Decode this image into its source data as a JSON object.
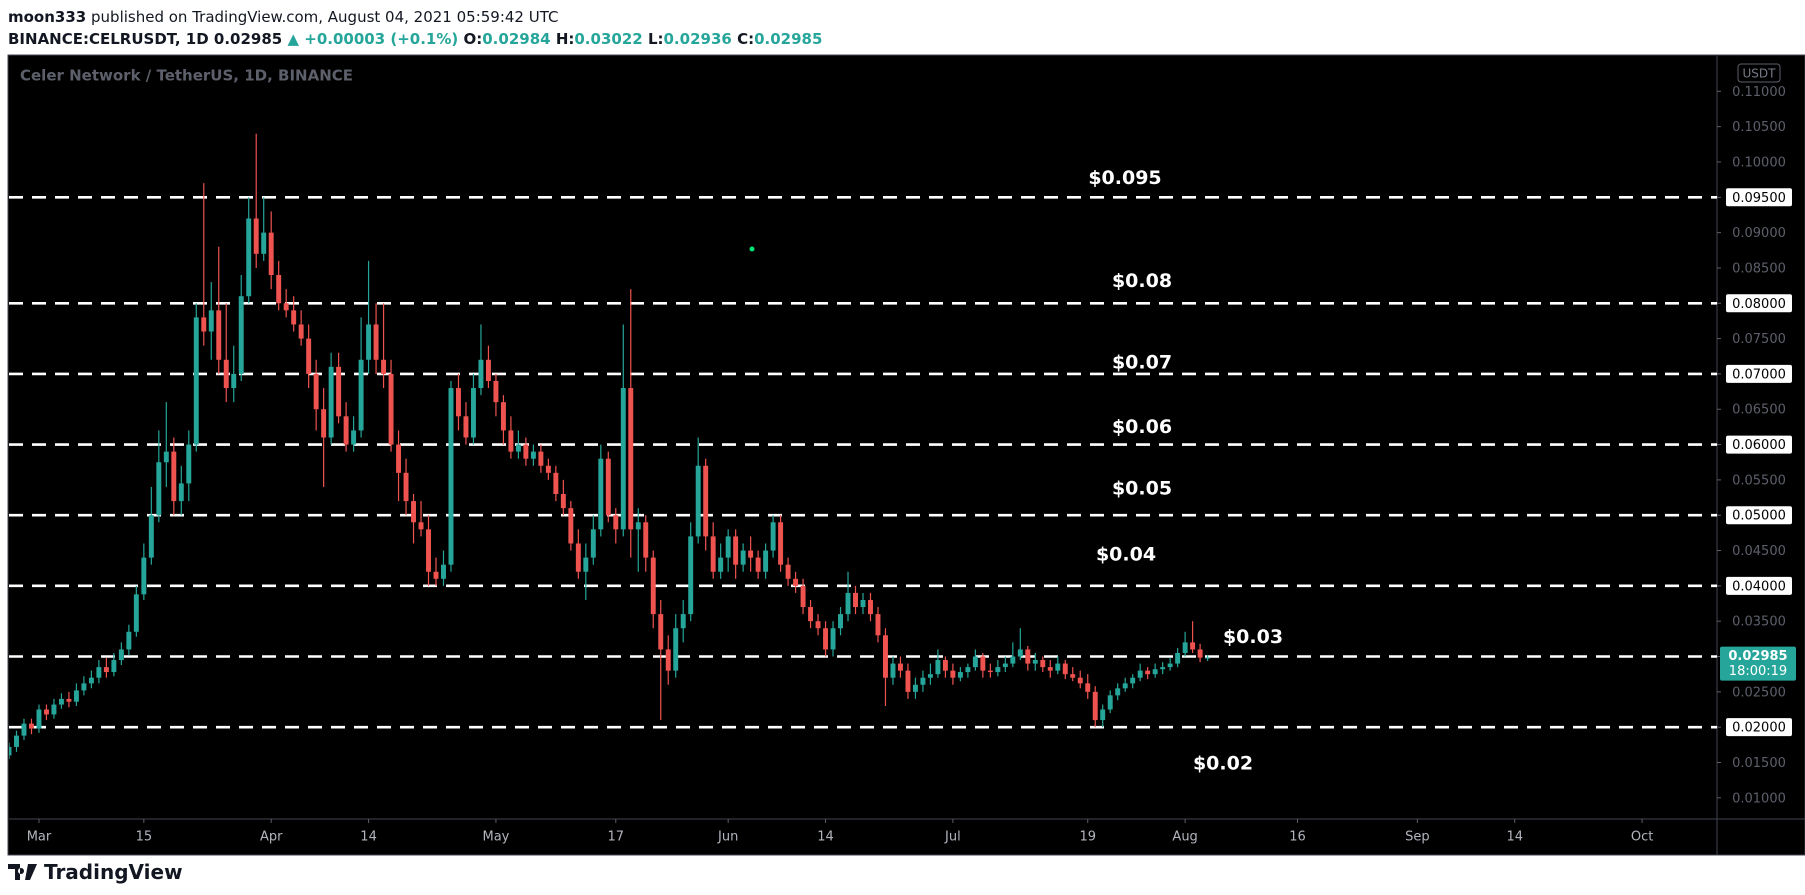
{
  "header": {
    "author": "moon333",
    "published": "published on TradingView.com, August 04, 2021 05:59:42 UTC",
    "symbol": "BINANCE:CELRUSDT, 1D",
    "change_arrow": "▲",
    "change": "+0.00003 (+0.1%)",
    "open_label": "O:",
    "high_label": "H:",
    "low_label": "L:",
    "close_label": "C:"
  },
  "footer": {
    "brand": "TradingView"
  },
  "chart_data": {
    "type": "candlestick",
    "title": "Celer Network / TetherUS, 1D, BINANCE",
    "y_unit": "USDT",
    "countdown": "18:00:19",
    "up_color": "#26a69a",
    "down_color": "#ef5350",
    "xlim": [
      "2021-02-25",
      "2021-10-11"
    ],
    "ylim": [
      0.007,
      0.115
    ],
    "xticks": [
      {
        "value": "2021-03-01",
        "label": "Mar"
      },
      {
        "value": "2021-03-15",
        "label": "15"
      },
      {
        "value": "2021-04-01",
        "label": "Apr"
      },
      {
        "value": "2021-04-14",
        "label": "14"
      },
      {
        "value": "2021-05-01",
        "label": "May"
      },
      {
        "value": "2021-05-17",
        "label": "17"
      },
      {
        "value": "2021-06-01",
        "label": "Jun"
      },
      {
        "value": "2021-06-14",
        "label": "14"
      },
      {
        "value": "2021-07-01",
        "label": "Jul"
      },
      {
        "value": "2021-07-19",
        "label": "19"
      },
      {
        "value": "2021-08-01",
        "label": "Aug"
      },
      {
        "value": "2021-08-16",
        "label": "16"
      },
      {
        "value": "2021-09-01",
        "label": "Sep"
      },
      {
        "value": "2021-09-14",
        "label": "14"
      },
      {
        "value": "2021-10-01",
        "label": "Oct"
      }
    ],
    "yticks": [
      {
        "value": 0.01,
        "label": "0.01000"
      },
      {
        "value": 0.015,
        "label": "0.01500"
      },
      {
        "value": 0.02,
        "label": "0.02000"
      },
      {
        "value": 0.025,
        "label": "0.02500"
      },
      {
        "value": 0.03,
        "label": "0.03000"
      },
      {
        "value": 0.035,
        "label": "0.03500"
      },
      {
        "value": 0.04,
        "label": "0.04000"
      },
      {
        "value": 0.045,
        "label": "0.04500"
      },
      {
        "value": 0.05,
        "label": "0.05000"
      },
      {
        "value": 0.055,
        "label": "0.05500"
      },
      {
        "value": 0.06,
        "label": "0.06000"
      },
      {
        "value": 0.065,
        "label": "0.06500"
      },
      {
        "value": 0.07,
        "label": "0.07000"
      },
      {
        "value": 0.075,
        "label": "0.07500"
      },
      {
        "value": 0.08,
        "label": "0.08000"
      },
      {
        "value": 0.085,
        "label": "0.08500"
      },
      {
        "value": 0.09,
        "label": "0.09000"
      },
      {
        "value": 0.095,
        "label": "0.09500"
      },
      {
        "value": 0.1,
        "label": "0.10000"
      },
      {
        "value": 0.105,
        "label": "0.10500"
      },
      {
        "value": 0.11,
        "label": "0.11000"
      }
    ],
    "levels": [
      {
        "value": 0.095,
        "label": "$0.095"
      },
      {
        "value": 0.08,
        "label": "$0.08"
      },
      {
        "value": 0.07,
        "label": "$0.07"
      },
      {
        "value": 0.06,
        "label": "$0.06"
      },
      {
        "value": 0.05,
        "label": "$0.05"
      },
      {
        "value": 0.04,
        "label": "$0.04"
      },
      {
        "value": 0.03,
        "label": "$0.03"
      },
      {
        "value": 0.02,
        "label": "$0.02"
      }
    ],
    "x": [
      "2021-02-25",
      "2021-02-26",
      "2021-02-27",
      "2021-02-28",
      "2021-03-01",
      "2021-03-02",
      "2021-03-03",
      "2021-03-04",
      "2021-03-05",
      "2021-03-06",
      "2021-03-07",
      "2021-03-08",
      "2021-03-09",
      "2021-03-10",
      "2021-03-11",
      "2021-03-12",
      "2021-03-13",
      "2021-03-14",
      "2021-03-15",
      "2021-03-16",
      "2021-03-17",
      "2021-03-18",
      "2021-03-19",
      "2021-03-20",
      "2021-03-21",
      "2021-03-22",
      "2021-03-23",
      "2021-03-24",
      "2021-03-25",
      "2021-03-26",
      "2021-03-27",
      "2021-03-28",
      "2021-03-29",
      "2021-03-30",
      "2021-03-31",
      "2021-04-01",
      "2021-04-02",
      "2021-04-03",
      "2021-04-04",
      "2021-04-05",
      "2021-04-06",
      "2021-04-07",
      "2021-04-08",
      "2021-04-09",
      "2021-04-10",
      "2021-04-11",
      "2021-04-12",
      "2021-04-13",
      "2021-04-14",
      "2021-04-15",
      "2021-04-16",
      "2021-04-17",
      "2021-04-18",
      "2021-04-19",
      "2021-04-20",
      "2021-04-21",
      "2021-04-22",
      "2021-04-23",
      "2021-04-24",
      "2021-04-25",
      "2021-04-26",
      "2021-04-27",
      "2021-04-28",
      "2021-04-29",
      "2021-04-30",
      "2021-05-01",
      "2021-05-02",
      "2021-05-03",
      "2021-05-04",
      "2021-05-05",
      "2021-05-06",
      "2021-05-07",
      "2021-05-08",
      "2021-05-09",
      "2021-05-10",
      "2021-05-11",
      "2021-05-12",
      "2021-05-13",
      "2021-05-14",
      "2021-05-15",
      "2021-05-16",
      "2021-05-17",
      "2021-05-18",
      "2021-05-19",
      "2021-05-20",
      "2021-05-21",
      "2021-05-22",
      "2021-05-23",
      "2021-05-24",
      "2021-05-25",
      "2021-05-26",
      "2021-05-27",
      "2021-05-28",
      "2021-05-29",
      "2021-05-30",
      "2021-05-31",
      "2021-06-01",
      "2021-06-02",
      "2021-06-03",
      "2021-06-04",
      "2021-06-05",
      "2021-06-06",
      "2021-06-07",
      "2021-06-08",
      "2021-06-09",
      "2021-06-10",
      "2021-06-11",
      "2021-06-12",
      "2021-06-13",
      "2021-06-14",
      "2021-06-15",
      "2021-06-16",
      "2021-06-17",
      "2021-06-18",
      "2021-06-19",
      "2021-06-20",
      "2021-06-21",
      "2021-06-22",
      "2021-06-23",
      "2021-06-24",
      "2021-06-25",
      "2021-06-26",
      "2021-06-27",
      "2021-06-28",
      "2021-06-29",
      "2021-06-30",
      "2021-07-01",
      "2021-07-02",
      "2021-07-03",
      "2021-07-04",
      "2021-07-05",
      "2021-07-06",
      "2021-07-07",
      "2021-07-08",
      "2021-07-09",
      "2021-07-10",
      "2021-07-11",
      "2021-07-12",
      "2021-07-13",
      "2021-07-14",
      "2021-07-15",
      "2021-07-16",
      "2021-07-17",
      "2021-07-18",
      "2021-07-19",
      "2021-07-20",
      "2021-07-21",
      "2021-07-22",
      "2021-07-23",
      "2021-07-24",
      "2021-07-25",
      "2021-07-26",
      "2021-07-27",
      "2021-07-28",
      "2021-07-29",
      "2021-07-30",
      "2021-07-31",
      "2021-08-01",
      "2021-08-02",
      "2021-08-03",
      "2021-08-04"
    ],
    "open": [
      0.016,
      0.0172,
      0.0188,
      0.0205,
      0.0198,
      0.0225,
      0.0218,
      0.0232,
      0.024,
      0.0236,
      0.0252,
      0.0262,
      0.027,
      0.0285,
      0.0278,
      0.0295,
      0.031,
      0.0335,
      0.0388,
      0.044,
      0.05,
      0.0575,
      0.059,
      0.052,
      0.0545,
      0.06,
      0.078,
      0.076,
      0.079,
      0.072,
      0.068,
      0.07,
      0.081,
      0.092,
      0.087,
      0.09,
      0.084,
      0.08,
      0.079,
      0.077,
      0.075,
      0.07,
      0.065,
      0.061,
      0.071,
      0.064,
      0.06,
      0.062,
      0.072,
      0.077,
      0.072,
      0.07,
      0.06,
      0.056,
      0.052,
      0.049,
      0.048,
      0.042,
      0.041,
      0.043,
      0.068,
      0.064,
      0.061,
      0.068,
      0.072,
      0.069,
      0.066,
      0.062,
      0.059,
      0.06,
      0.058,
      0.059,
      0.057,
      0.056,
      0.053,
      0.051,
      0.046,
      0.042,
      0.044,
      0.048,
      0.058,
      0.05,
      0.048,
      0.068,
      0.048,
      0.049,
      0.044,
      0.036,
      0.031,
      0.028,
      0.034,
      0.036,
      0.047,
      0.057,
      0.047,
      0.042,
      0.044,
      0.047,
      0.043,
      0.045,
      0.044,
      0.042,
      0.045,
      0.049,
      0.043,
      0.041,
      0.04,
      0.037,
      0.035,
      0.034,
      0.031,
      0.034,
      0.036,
      0.039,
      0.037,
      0.038,
      0.036,
      0.033,
      0.027,
      0.029,
      0.028,
      0.025,
      0.026,
      0.027,
      0.0275,
      0.0295,
      0.028,
      0.027,
      0.0278,
      0.0285,
      0.03,
      0.028,
      0.0278,
      0.0285,
      0.029,
      0.03,
      0.031,
      0.029,
      0.0295,
      0.0285,
      0.028,
      0.029,
      0.0275,
      0.027,
      0.0262,
      0.025,
      0.021,
      0.0225,
      0.0245,
      0.0255,
      0.0262,
      0.027,
      0.028,
      0.0275,
      0.0282,
      0.0285,
      0.029,
      0.0305,
      0.032,
      0.031,
      0.02984
    ],
    "high": [
      0.0178,
      0.0195,
      0.0212,
      0.0212,
      0.0232,
      0.0232,
      0.024,
      0.0248,
      0.025,
      0.0262,
      0.0272,
      0.028,
      0.0295,
      0.0298,
      0.0305,
      0.032,
      0.0345,
      0.04,
      0.046,
      0.054,
      0.062,
      0.066,
      0.061,
      0.057,
      0.062,
      0.08,
      0.097,
      0.083,
      0.088,
      0.08,
      0.074,
      0.084,
      0.095,
      0.104,
      0.095,
      0.093,
      0.086,
      0.082,
      0.081,
      0.079,
      0.077,
      0.072,
      0.068,
      0.073,
      0.073,
      0.066,
      0.064,
      0.078,
      0.086,
      0.08,
      0.08,
      0.072,
      0.062,
      0.058,
      0.053,
      0.052,
      0.05,
      0.044,
      0.045,
      0.069,
      0.07,
      0.066,
      0.07,
      0.077,
      0.074,
      0.07,
      0.067,
      0.064,
      0.062,
      0.061,
      0.06,
      0.06,
      0.058,
      0.057,
      0.055,
      0.052,
      0.048,
      0.046,
      0.05,
      0.06,
      0.059,
      0.051,
      0.077,
      0.082,
      0.051,
      0.05,
      0.045,
      0.038,
      0.033,
      0.036,
      0.038,
      0.049,
      0.061,
      0.058,
      0.049,
      0.046,
      0.048,
      0.048,
      0.046,
      0.047,
      0.045,
      0.046,
      0.05,
      0.05,
      0.044,
      0.042,
      0.041,
      0.038,
      0.036,
      0.035,
      0.035,
      0.037,
      0.042,
      0.04,
      0.039,
      0.039,
      0.037,
      0.034,
      0.03,
      0.03,
      0.029,
      0.027,
      0.028,
      0.029,
      0.031,
      0.03,
      0.029,
      0.0285,
      0.029,
      0.031,
      0.0305,
      0.029,
      0.0295,
      0.03,
      0.032,
      0.034,
      0.0315,
      0.0305,
      0.03,
      0.0295,
      0.03,
      0.0295,
      0.0285,
      0.028,
      0.0275,
      0.0258,
      0.0232,
      0.0252,
      0.0262,
      0.027,
      0.0275,
      0.029,
      0.0285,
      0.029,
      0.0292,
      0.0298,
      0.0312,
      0.0335,
      0.035,
      0.0318,
      0.03022
    ],
    "low": [
      0.0155,
      0.0165,
      0.0182,
      0.019,
      0.0192,
      0.021,
      0.0212,
      0.0226,
      0.0228,
      0.023,
      0.0245,
      0.0255,
      0.0262,
      0.027,
      0.0272,
      0.0288,
      0.0302,
      0.0328,
      0.038,
      0.043,
      0.049,
      0.054,
      0.05,
      0.05,
      0.052,
      0.059,
      0.074,
      0.072,
      0.07,
      0.066,
      0.066,
      0.069,
      0.08,
      0.085,
      0.086,
      0.082,
      0.079,
      0.078,
      0.076,
      0.074,
      0.068,
      0.062,
      0.054,
      0.06,
      0.063,
      0.059,
      0.059,
      0.061,
      0.07,
      0.07,
      0.068,
      0.059,
      0.052,
      0.05,
      0.046,
      0.047,
      0.04,
      0.04,
      0.04,
      0.042,
      0.062,
      0.06,
      0.06,
      0.067,
      0.068,
      0.064,
      0.06,
      0.058,
      0.058,
      0.057,
      0.057,
      0.056,
      0.055,
      0.052,
      0.05,
      0.045,
      0.041,
      0.038,
      0.043,
      0.047,
      0.049,
      0.046,
      0.047,
      0.044,
      0.042,
      0.042,
      0.034,
      0.021,
      0.026,
      0.027,
      0.032,
      0.035,
      0.046,
      0.045,
      0.041,
      0.041,
      0.042,
      0.041,
      0.042,
      0.042,
      0.041,
      0.041,
      0.044,
      0.042,
      0.04,
      0.039,
      0.036,
      0.034,
      0.033,
      0.03,
      0.03,
      0.033,
      0.035,
      0.036,
      0.036,
      0.035,
      0.032,
      0.023,
      0.026,
      0.027,
      0.024,
      0.024,
      0.025,
      0.026,
      0.027,
      0.027,
      0.026,
      0.0265,
      0.027,
      0.028,
      0.027,
      0.027,
      0.0272,
      0.0278,
      0.0285,
      0.0295,
      0.028,
      0.028,
      0.0278,
      0.027,
      0.0275,
      0.0268,
      0.0265,
      0.0255,
      0.024,
      0.02,
      0.02,
      0.022,
      0.0238,
      0.025,
      0.0255,
      0.0265,
      0.0268,
      0.027,
      0.0275,
      0.028,
      0.0285,
      0.03,
      0.0305,
      0.0292,
      0.02936
    ],
    "close": [
      0.0172,
      0.0188,
      0.0205,
      0.0198,
      0.0225,
      0.0218,
      0.0232,
      0.024,
      0.0236,
      0.0252,
      0.0262,
      0.027,
      0.0285,
      0.0278,
      0.0295,
      0.031,
      0.0335,
      0.0388,
      0.044,
      0.05,
      0.0575,
      0.059,
      0.052,
      0.0545,
      0.06,
      0.078,
      0.076,
      0.079,
      0.072,
      0.068,
      0.07,
      0.081,
      0.092,
      0.087,
      0.09,
      0.084,
      0.08,
      0.079,
      0.077,
      0.075,
      0.07,
      0.065,
      0.061,
      0.071,
      0.064,
      0.06,
      0.062,
      0.072,
      0.077,
      0.072,
      0.07,
      0.06,
      0.056,
      0.052,
      0.049,
      0.048,
      0.042,
      0.041,
      0.043,
      0.068,
      0.064,
      0.061,
      0.068,
      0.072,
      0.069,
      0.066,
      0.062,
      0.059,
      0.06,
      0.058,
      0.059,
      0.057,
      0.056,
      0.053,
      0.051,
      0.046,
      0.042,
      0.044,
      0.048,
      0.058,
      0.05,
      0.048,
      0.068,
      0.048,
      0.049,
      0.044,
      0.036,
      0.031,
      0.028,
      0.034,
      0.036,
      0.047,
      0.057,
      0.047,
      0.042,
      0.044,
      0.047,
      0.043,
      0.045,
      0.044,
      0.042,
      0.045,
      0.049,
      0.043,
      0.041,
      0.04,
      0.037,
      0.035,
      0.034,
      0.031,
      0.034,
      0.036,
      0.039,
      0.037,
      0.038,
      0.036,
      0.033,
      0.027,
      0.029,
      0.028,
      0.025,
      0.026,
      0.027,
      0.0275,
      0.0295,
      0.028,
      0.027,
      0.0278,
      0.0285,
      0.03,
      0.028,
      0.0278,
      0.0285,
      0.029,
      0.03,
      0.031,
      0.029,
      0.0295,
      0.0285,
      0.028,
      0.029,
      0.0275,
      0.027,
      0.0262,
      0.025,
      0.021,
      0.0225,
      0.0245,
      0.0255,
      0.0262,
      0.027,
      0.028,
      0.0275,
      0.0282,
      0.0285,
      0.029,
      0.0305,
      0.032,
      0.031,
      0.02984,
      0.02985
    ]
  }
}
